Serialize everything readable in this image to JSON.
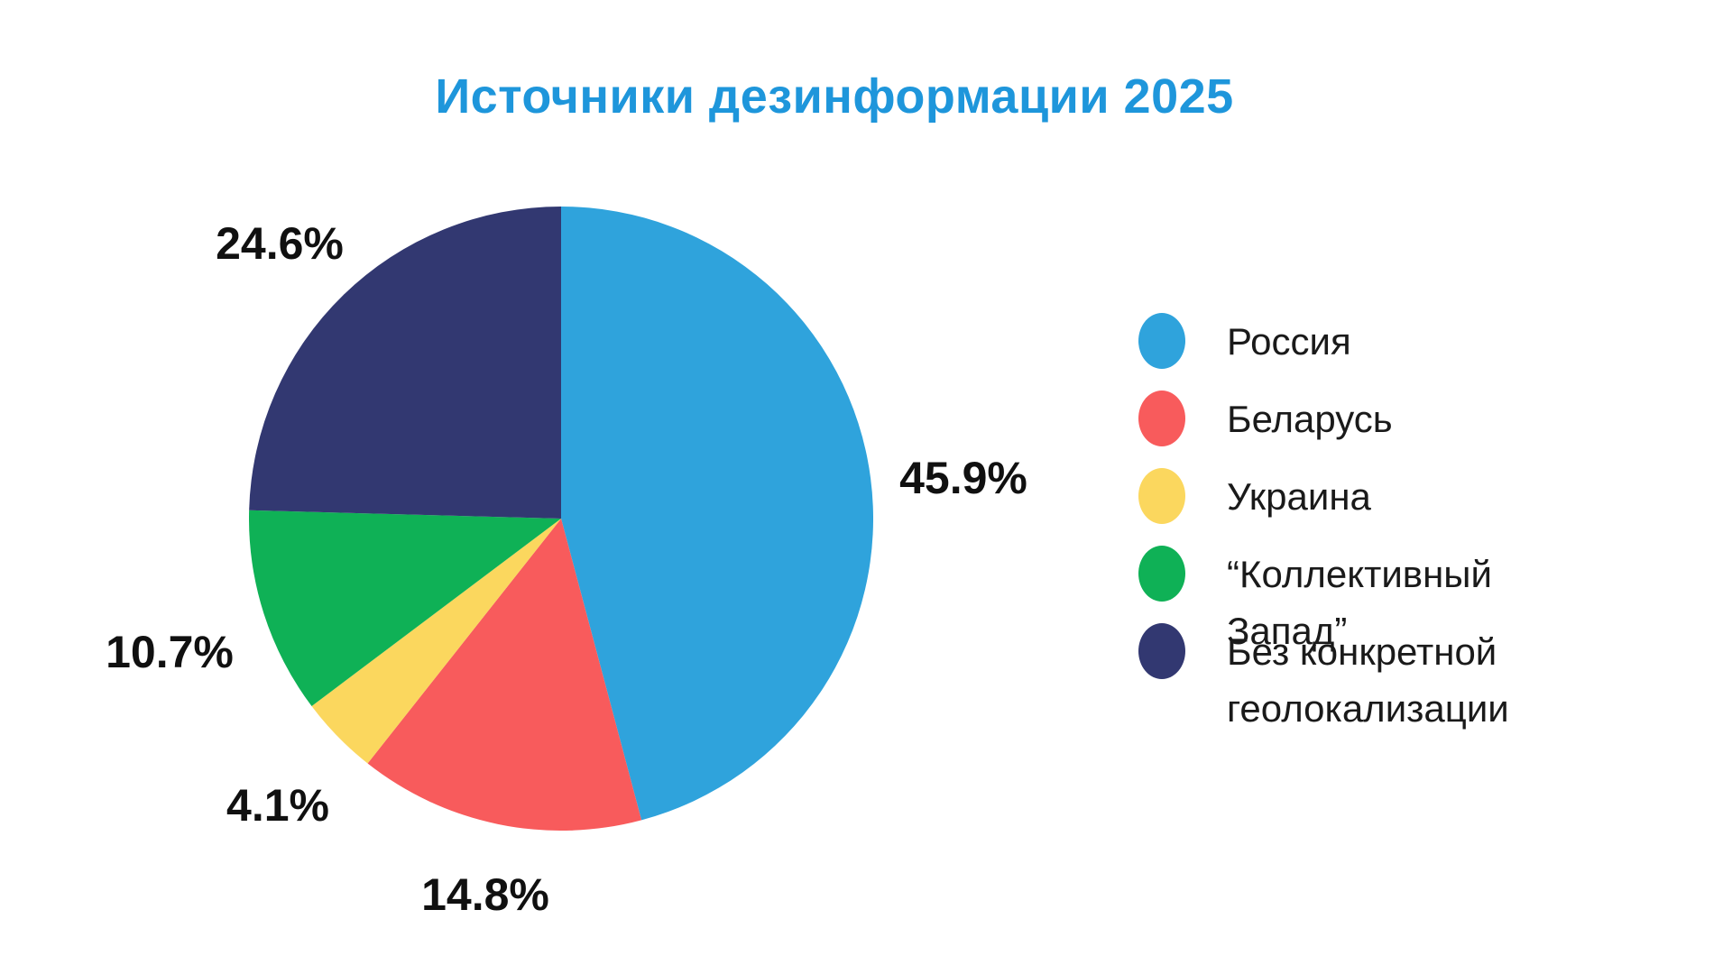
{
  "title": "Источники дезинформации 2025",
  "chart_data": {
    "type": "pie",
    "title": "Источники дезинформации 2025",
    "title_color": "#1E96DB",
    "legend_position": "right",
    "start_angle_deg": 0,
    "direction": "clockwise",
    "value_unit": "%",
    "slices": [
      {
        "label": "Россия",
        "value": 45.9,
        "pct_label": "45.9%",
        "color": "#2FA3DC"
      },
      {
        "label": "Беларусь",
        "value": 14.8,
        "pct_label": "14.8%",
        "color": "#F85B5C"
      },
      {
        "label": "Украина",
        "value": 4.1,
        "pct_label": "4.1%",
        "color": "#FBD75E"
      },
      {
        "label": "“Коллективный Запад”",
        "value": 10.7,
        "pct_label": "10.7%",
        "color": "#0FB156"
      },
      {
        "label": "Без конкретной геолокализации",
        "value": 24.6,
        "pct_label": "24.6%",
        "color": "#323871"
      }
    ]
  }
}
